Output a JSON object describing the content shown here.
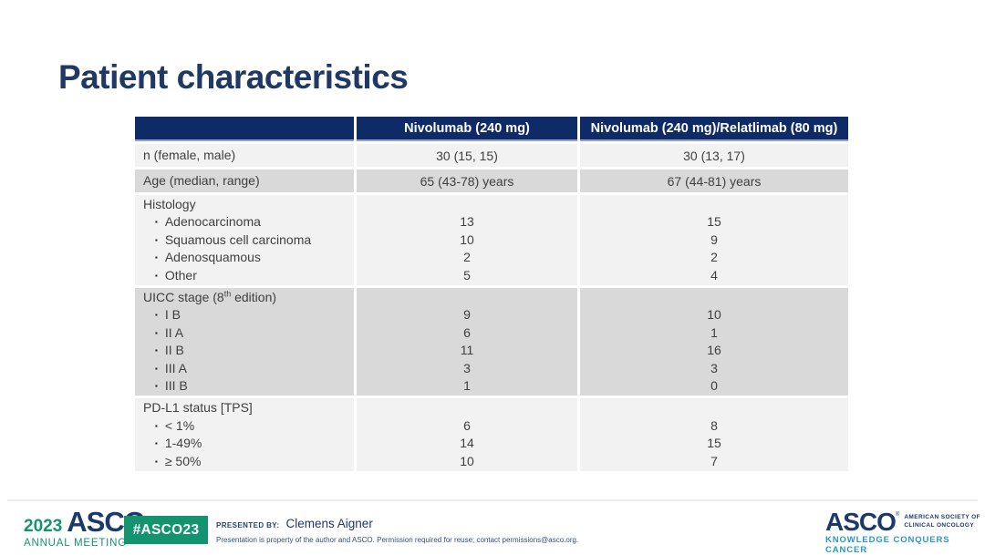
{
  "slide": {
    "title": "Patient characteristics"
  },
  "colors": {
    "header_navy": "#0e2a67",
    "title_navy": "#1f3864",
    "asco_navy": "#1b3a6b",
    "asco_green": "#13946f",
    "tagline_blue": "#2996cc",
    "row_light": "#f2f2f2",
    "row_dark": "#d9d9d9"
  },
  "table": {
    "header": {
      "col1": "",
      "col2": "Nivolumab (240 mg)",
      "col3": "Nivolumab (240 mg)/Relatlimab (80 mg)"
    },
    "groups": [
      {
        "shade": "light",
        "label": "n (female, male)",
        "values": [
          "30 (15, 15)",
          "30 (13, 17)"
        ]
      },
      {
        "shade": "dark",
        "label": "Age (median, range)",
        "values": [
          "65 (43-78) years",
          "67 (44-81) years"
        ]
      },
      {
        "shade": "light",
        "label": "Histology",
        "items": [
          {
            "label": "Adenocarcinoma",
            "values": [
              "13",
              "15"
            ]
          },
          {
            "label": "Squamous cell carcinoma",
            "values": [
              "10",
              "9"
            ]
          },
          {
            "label": "Adenosquamous",
            "values": [
              "2",
              "2"
            ]
          },
          {
            "label": "Other",
            "values": [
              "5",
              "4"
            ]
          }
        ]
      },
      {
        "shade": "dark",
        "label": {
          "pre": "UICC stage (8",
          "sup": "th",
          "post": " edition)"
        },
        "items": [
          {
            "label": "I B",
            "values": [
              "9",
              "10"
            ]
          },
          {
            "label": "II A",
            "values": [
              "6",
              "1"
            ]
          },
          {
            "label": "II B",
            "values": [
              "11",
              "16"
            ]
          },
          {
            "label": "III A",
            "values": [
              "3",
              "3"
            ]
          },
          {
            "label": "III B",
            "values": [
              "1",
              "0"
            ]
          }
        ]
      },
      {
        "shade": "light",
        "label": "PD-L1 status [TPS]",
        "items": [
          {
            "label": "< 1%",
            "values": [
              "6",
              "8"
            ]
          },
          {
            "label": "1-49%",
            "values": [
              "14",
              "15"
            ]
          },
          {
            "label": "≥ 50%",
            "values": [
              "10",
              "7"
            ]
          }
        ]
      }
    ],
    "bullet_glyph": "▪"
  },
  "footer": {
    "year": "2023",
    "asco_logo": "ASCO",
    "annual_meeting": "ANNUAL MEETING",
    "hashtag": "#ASCO23",
    "presented_by_label": "PRESENTED BY:",
    "presenter": "Clemens Aigner",
    "disclaimer": "Presentation is property of the author and ASCO. Permission required for reuse; contact permissions@asco.org.",
    "registered_mark": "®",
    "right_logo": {
      "asco": "ASCO",
      "society_line1": "AMERICAN SOCIETY OF",
      "society_line2": "CLINICAL ONCOLOGY",
      "tagline": "KNOWLEDGE CONQUERS CANCER"
    }
  }
}
